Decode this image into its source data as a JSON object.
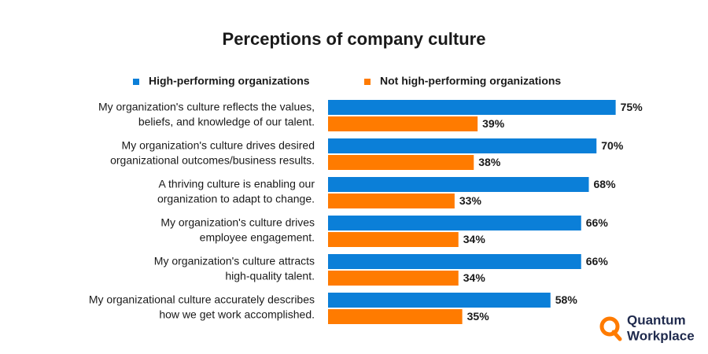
{
  "chart_data": {
    "type": "hbar",
    "title": "Perceptions of company culture",
    "categories": [
      [
        "My organization's culture reflects the values,",
        "beliefs, and knowledge of our talent."
      ],
      [
        "My organization's culture drives desired",
        "organizational outcomes/business results."
      ],
      [
        "A thriving culture is enabling our",
        "organization to adapt to change."
      ],
      [
        "My organization's culture drives",
        "employee engagement."
      ],
      [
        "My organization's culture attracts",
        "high-quality talent."
      ],
      [
        "My organizational culture accurately describes",
        "how we get work accomplished."
      ]
    ],
    "series": [
      {
        "name": "High-performing organizations",
        "color": "#0b7fd8",
        "values": [
          75,
          70,
          68,
          66,
          66,
          58
        ],
        "value_labels": [
          "75%",
          "70%",
          "68%",
          "66%",
          "66%",
          "58%"
        ]
      },
      {
        "name": "Not high-performing organizations",
        "color": "#ff7b00",
        "values": [
          39,
          38,
          33,
          34,
          34,
          35
        ],
        "value_labels": [
          "39%",
          "38%",
          "33%",
          "34%",
          "34%",
          "35%"
        ]
      }
    ],
    "xlim": [
      0,
      80
    ]
  },
  "logo": {
    "lines": [
      "Quantum",
      "Workplace"
    ]
  }
}
